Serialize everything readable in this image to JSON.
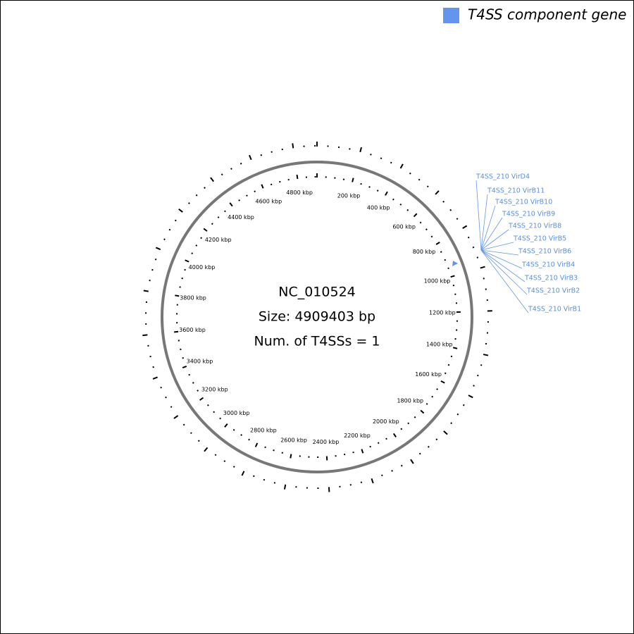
{
  "legend": {
    "label": "T4SS component gene"
  },
  "center": {
    "accession": "NC_010524",
    "size": "Size: 4909403 bp",
    "count": "Num. of T4SSs = 1"
  },
  "scale_labels": [
    "200 kbp",
    "400 kbp",
    "600 kbp",
    "800 kbp",
    "1000 kbp",
    "1200 kbp",
    "1400 kbp",
    "1600 kbp",
    "1800 kbp",
    "2000 kbp",
    "2200 kbp",
    "2400 kbp",
    "2600 kbp",
    "2800 kbp",
    "3000 kbp",
    "3200 kbp",
    "3400 kbp",
    "3600 kbp",
    "3800 kbp",
    "4000 kbp",
    "4200 kbp",
    "4400 kbp",
    "4600 kbp",
    "4800 kbp"
  ],
  "genes": [
    "T4SS_210 VirD4",
    "T4SS_210 VirB11",
    "T4SS_210 VirB10",
    "T4SS_210 VirB9",
    "T4SS_210 VirB8",
    "T4SS_210 VirB5",
    "T4SS_210 VirB6",
    "T4SS_210 VirB4",
    "T4SS_210 VirB3",
    "T4SS_210 VirB2",
    "T4SS_210 VirB1"
  ]
}
